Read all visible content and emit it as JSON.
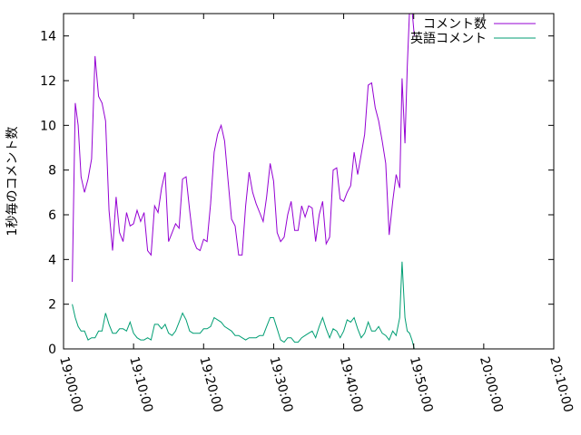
{
  "chart_data": {
    "type": "line",
    "title": "",
    "xlabel": "",
    "ylabel": "1秒毎のコメント数",
    "xlim": [
      "19:00:00",
      "20:10:00"
    ],
    "ylim": [
      0,
      15
    ],
    "x_ticks": [
      "19:00:00",
      "19:10:00",
      "19:20:00",
      "19:30:00",
      "19:40:00",
      "19:50:00",
      "20:00:00",
      "20:10:00"
    ],
    "y_ticks": [
      0,
      2,
      4,
      6,
      8,
      10,
      12,
      14
    ],
    "grid": false,
    "legend_position": "top-right",
    "series": [
      {
        "name": "コメント数",
        "color": "#9400d3",
        "points": [
          [
            "19:01:15",
            3.0
          ],
          [
            "19:01:40",
            11.0
          ],
          [
            "19:02:05",
            10.0
          ],
          [
            "19:02:30",
            7.7
          ],
          [
            "19:03:00",
            7.0
          ],
          [
            "19:03:30",
            7.6
          ],
          [
            "19:04:00",
            8.5
          ],
          [
            "19:04:30",
            13.1
          ],
          [
            "19:05:00",
            11.3
          ],
          [
            "19:05:30",
            11.0
          ],
          [
            "19:06:00",
            10.2
          ],
          [
            "19:06:30",
            6.2
          ],
          [
            "19:07:00",
            4.4
          ],
          [
            "19:07:30",
            6.8
          ],
          [
            "19:08:00",
            5.2
          ],
          [
            "19:08:30",
            4.8
          ],
          [
            "19:09:00",
            6.1
          ],
          [
            "19:09:30",
            5.5
          ],
          [
            "19:10:00",
            5.6
          ],
          [
            "19:10:30",
            6.2
          ],
          [
            "19:11:00",
            5.7
          ],
          [
            "19:11:30",
            6.1
          ],
          [
            "19:12:00",
            4.4
          ],
          [
            "19:12:30",
            4.2
          ],
          [
            "19:13:00",
            6.4
          ],
          [
            "19:13:30",
            6.1
          ],
          [
            "19:14:00",
            7.2
          ],
          [
            "19:14:30",
            7.9
          ],
          [
            "19:15:00",
            4.8
          ],
          [
            "19:15:30",
            5.2
          ],
          [
            "19:16:00",
            5.6
          ],
          [
            "19:16:30",
            5.4
          ],
          [
            "19:17:00",
            7.6
          ],
          [
            "19:17:30",
            7.7
          ],
          [
            "19:18:00",
            6.2
          ],
          [
            "19:18:30",
            4.9
          ],
          [
            "19:19:00",
            4.5
          ],
          [
            "19:19:30",
            4.4
          ],
          [
            "19:20:00",
            4.9
          ],
          [
            "19:20:30",
            4.8
          ],
          [
            "19:21:00",
            6.5
          ],
          [
            "19:21:30",
            8.8
          ],
          [
            "19:22:00",
            9.6
          ],
          [
            "19:22:30",
            10.0
          ],
          [
            "19:23:00",
            9.3
          ],
          [
            "19:23:30",
            7.5
          ],
          [
            "19:24:00",
            5.8
          ],
          [
            "19:24:30",
            5.5
          ],
          [
            "19:25:00",
            4.2
          ],
          [
            "19:25:30",
            4.2
          ],
          [
            "19:26:00",
            6.4
          ],
          [
            "19:26:30",
            7.9
          ],
          [
            "19:27:00",
            7.0
          ],
          [
            "19:27:30",
            6.5
          ],
          [
            "19:28:00",
            6.1
          ],
          [
            "19:28:30",
            5.7
          ],
          [
            "19:29:00",
            6.8
          ],
          [
            "19:29:30",
            8.3
          ],
          [
            "19:30:00",
            7.5
          ],
          [
            "19:30:30",
            5.2
          ],
          [
            "19:31:00",
            4.8
          ],
          [
            "19:31:30",
            5.0
          ],
          [
            "19:32:00",
            6.0
          ],
          [
            "19:32:30",
            6.6
          ],
          [
            "19:33:00",
            5.3
          ],
          [
            "19:33:30",
            5.3
          ],
          [
            "19:34:00",
            6.4
          ],
          [
            "19:34:30",
            5.9
          ],
          [
            "19:35:00",
            6.4
          ],
          [
            "19:35:30",
            6.3
          ],
          [
            "19:36:00",
            4.8
          ],
          [
            "19:36:30",
            6.0
          ],
          [
            "19:37:00",
            6.6
          ],
          [
            "19:37:30",
            4.7
          ],
          [
            "19:38:00",
            5.0
          ],
          [
            "19:38:30",
            8.0
          ],
          [
            "19:39:00",
            8.1
          ],
          [
            "19:39:30",
            6.7
          ],
          [
            "19:40:00",
            6.6
          ],
          [
            "19:40:30",
            7.0
          ],
          [
            "19:41:00",
            7.3
          ],
          [
            "19:41:30",
            8.8
          ],
          [
            "19:42:00",
            7.8
          ],
          [
            "19:42:30",
            8.7
          ],
          [
            "19:43:00",
            9.6
          ],
          [
            "19:43:30",
            11.8
          ],
          [
            "19:44:00",
            11.9
          ],
          [
            "19:44:30",
            10.8
          ],
          [
            "19:45:00",
            10.2
          ],
          [
            "19:45:30",
            9.3
          ],
          [
            "19:46:00",
            8.3
          ],
          [
            "19:46:30",
            5.1
          ],
          [
            "19:47:00",
            6.6
          ],
          [
            "19:47:30",
            7.8
          ],
          [
            "19:48:00",
            7.2
          ],
          [
            "19:48:20",
            12.1
          ],
          [
            "19:48:45",
            9.2
          ],
          [
            "19:49:05",
            12.6
          ],
          [
            "19:49:25",
            15.2
          ],
          [
            "19:49:45",
            15.2
          ],
          [
            "19:50:05",
            14.0
          ]
        ]
      },
      {
        "name": "英語コメント",
        "color": "#009e73",
        "points": [
          [
            "19:01:15",
            2.0
          ],
          [
            "19:01:40",
            1.4
          ],
          [
            "19:02:05",
            1.0
          ],
          [
            "19:02:30",
            0.8
          ],
          [
            "19:03:00",
            0.8
          ],
          [
            "19:03:30",
            0.4
          ],
          [
            "19:04:00",
            0.5
          ],
          [
            "19:04:30",
            0.5
          ],
          [
            "19:05:00",
            0.8
          ],
          [
            "19:05:30",
            0.8
          ],
          [
            "19:06:00",
            1.6
          ],
          [
            "19:06:30",
            1.1
          ],
          [
            "19:07:00",
            0.7
          ],
          [
            "19:07:30",
            0.7
          ],
          [
            "19:08:00",
            0.9
          ],
          [
            "19:08:30",
            0.9
          ],
          [
            "19:09:00",
            0.8
          ],
          [
            "19:09:30",
            1.2
          ],
          [
            "19:10:00",
            0.7
          ],
          [
            "19:10:30",
            0.5
          ],
          [
            "19:11:00",
            0.4
          ],
          [
            "19:11:30",
            0.4
          ],
          [
            "19:12:00",
            0.5
          ],
          [
            "19:12:30",
            0.4
          ],
          [
            "19:13:00",
            1.1
          ],
          [
            "19:13:30",
            1.1
          ],
          [
            "19:14:00",
            0.9
          ],
          [
            "19:14:30",
            1.1
          ],
          [
            "19:15:00",
            0.7
          ],
          [
            "19:15:30",
            0.6
          ],
          [
            "19:16:00",
            0.8
          ],
          [
            "19:16:30",
            1.2
          ],
          [
            "19:17:00",
            1.6
          ],
          [
            "19:17:30",
            1.3
          ],
          [
            "19:18:00",
            0.8
          ],
          [
            "19:18:30",
            0.7
          ],
          [
            "19:19:00",
            0.7
          ],
          [
            "19:19:30",
            0.7
          ],
          [
            "19:20:00",
            0.9
          ],
          [
            "19:20:30",
            0.9
          ],
          [
            "19:21:00",
            1.0
          ],
          [
            "19:21:30",
            1.4
          ],
          [
            "19:22:00",
            1.3
          ],
          [
            "19:22:30",
            1.2
          ],
          [
            "19:23:00",
            1.0
          ],
          [
            "19:23:30",
            0.9
          ],
          [
            "19:24:00",
            0.8
          ],
          [
            "19:24:30",
            0.6
          ],
          [
            "19:25:00",
            0.6
          ],
          [
            "19:25:30",
            0.5
          ],
          [
            "19:26:00",
            0.4
          ],
          [
            "19:26:30",
            0.5
          ],
          [
            "19:27:00",
            0.5
          ],
          [
            "19:27:30",
            0.5
          ],
          [
            "19:28:00",
            0.6
          ],
          [
            "19:28:30",
            0.6
          ],
          [
            "19:29:00",
            1.0
          ],
          [
            "19:29:30",
            1.4
          ],
          [
            "19:30:00",
            1.4
          ],
          [
            "19:30:30",
            0.9
          ],
          [
            "19:31:00",
            0.4
          ],
          [
            "19:31:30",
            0.3
          ],
          [
            "19:32:00",
            0.5
          ],
          [
            "19:32:30",
            0.5
          ],
          [
            "19:33:00",
            0.3
          ],
          [
            "19:33:30",
            0.3
          ],
          [
            "19:34:00",
            0.5
          ],
          [
            "19:34:30",
            0.6
          ],
          [
            "19:35:00",
            0.7
          ],
          [
            "19:35:30",
            0.8
          ],
          [
            "19:36:00",
            0.5
          ],
          [
            "19:36:30",
            1.0
          ],
          [
            "19:37:00",
            1.4
          ],
          [
            "19:37:30",
            0.9
          ],
          [
            "19:38:00",
            0.5
          ],
          [
            "19:38:30",
            0.9
          ],
          [
            "19:39:00",
            0.8
          ],
          [
            "19:39:30",
            0.5
          ],
          [
            "19:40:00",
            0.8
          ],
          [
            "19:40:30",
            1.3
          ],
          [
            "19:41:00",
            1.2
          ],
          [
            "19:41:30",
            1.4
          ],
          [
            "19:42:00",
            0.9
          ],
          [
            "19:42:30",
            0.5
          ],
          [
            "19:43:00",
            0.7
          ],
          [
            "19:43:30",
            1.2
          ],
          [
            "19:44:00",
            0.8
          ],
          [
            "19:44:30",
            0.8
          ],
          [
            "19:45:00",
            1.0
          ],
          [
            "19:45:30",
            0.7
          ],
          [
            "19:46:00",
            0.6
          ],
          [
            "19:46:30",
            0.4
          ],
          [
            "19:47:00",
            0.8
          ],
          [
            "19:47:30",
            0.6
          ],
          [
            "19:48:00",
            1.4
          ],
          [
            "19:48:20",
            3.9
          ],
          [
            "19:48:45",
            1.4
          ],
          [
            "19:49:05",
            0.8
          ],
          [
            "19:49:25",
            0.7
          ],
          [
            "19:49:45",
            0.4
          ],
          [
            "19:50:05",
            0.0
          ]
        ]
      }
    ]
  }
}
